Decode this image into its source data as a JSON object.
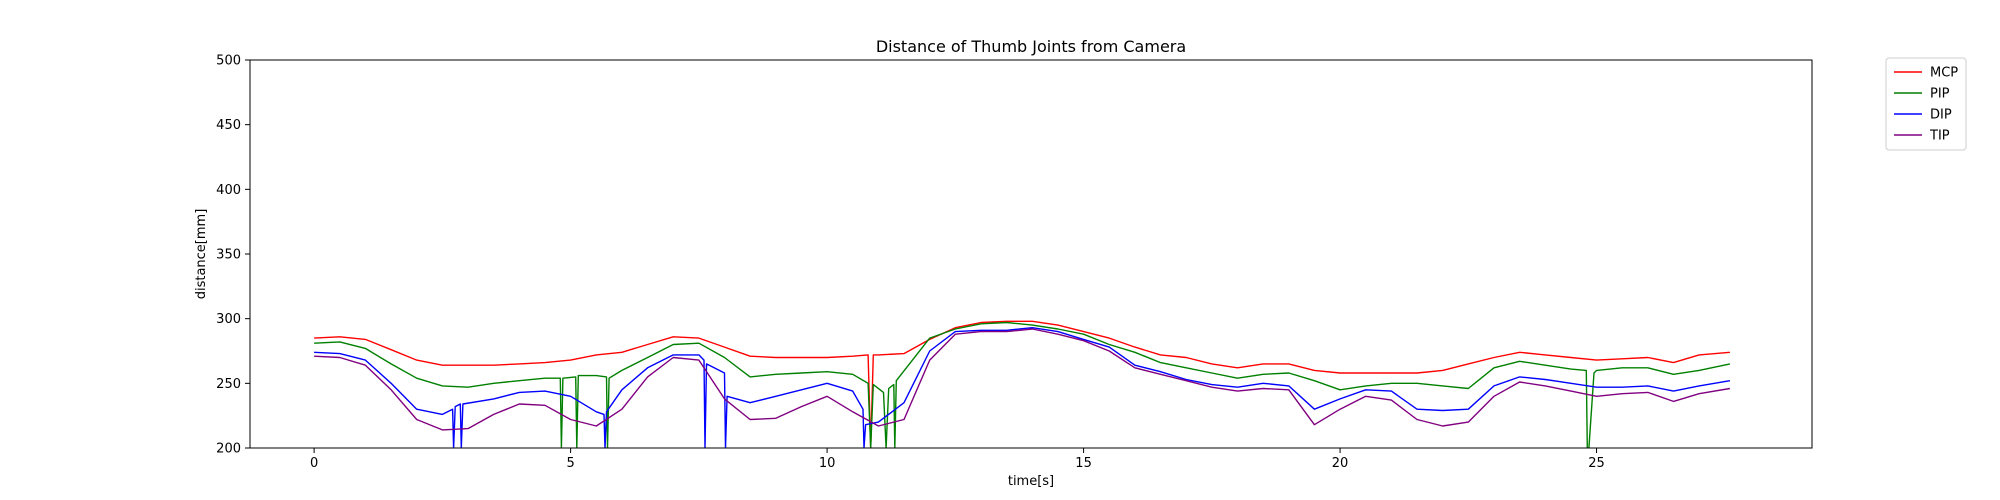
{
  "chart_data": {
    "type": "line",
    "title": "Distance of Thumb Joints from Camera",
    "xlabel": "time[s]",
    "ylabel": "distance[mm]",
    "xlim": [
      -1.25,
      29.2
    ],
    "ylim": [
      200,
      500
    ],
    "xticks": [
      0,
      5,
      10,
      15,
      20,
      25
    ],
    "yticks": [
      200,
      250,
      300,
      350,
      400,
      450,
      500
    ],
    "grid": false,
    "legend_position": "outside-top-right",
    "series": [
      {
        "name": "MCP",
        "color": "#ff0000",
        "x": [
          0,
          0.5,
          1.0,
          1.5,
          2.0,
          2.5,
          3.0,
          3.5,
          4.0,
          4.5,
          5.0,
          5.5,
          6.0,
          6.5,
          7.0,
          7.5,
          8.0,
          8.5,
          9.0,
          9.5,
          10.0,
          10.5,
          10.8,
          10.85,
          10.9,
          10.95,
          11.0,
          11.5,
          12.0,
          12.5,
          13.0,
          13.5,
          14.0,
          14.5,
          15.0,
          15.5,
          16.0,
          16.5,
          17.0,
          17.5,
          18.0,
          18.5,
          19.0,
          19.5,
          20.0,
          20.5,
          21.0,
          21.5,
          22.0,
          22.5,
          23.0,
          23.5,
          24.0,
          24.5,
          25.0,
          25.5,
          26.0,
          26.5,
          27.0,
          27.6
        ],
        "y": [
          285,
          286,
          284,
          276,
          268,
          264,
          264,
          264,
          265,
          266,
          268,
          272,
          274,
          280,
          286,
          285,
          278,
          271,
          270,
          270,
          270,
          271,
          272,
          200,
          272,
          272,
          272,
          273,
          284,
          293,
          297,
          298,
          298,
          295,
          290,
          285,
          278,
          272,
          270,
          265,
          262,
          265,
          265,
          260,
          258,
          258,
          258,
          258,
          260,
          265,
          270,
          274,
          272,
          270,
          268,
          269,
          270,
          266,
          272,
          274
        ]
      },
      {
        "name": "PIP",
        "color": "#008000",
        "x": [
          0,
          0.5,
          1.0,
          1.5,
          2.0,
          2.5,
          3.0,
          3.5,
          4.0,
          4.5,
          4.8,
          4.82,
          4.85,
          5.1,
          5.12,
          5.15,
          5.5,
          5.7,
          5.72,
          5.75,
          6.0,
          6.5,
          7.0,
          7.5,
          8.0,
          8.5,
          9.0,
          9.5,
          10.0,
          10.5,
          10.8,
          10.85,
          10.9,
          11.1,
          11.15,
          11.2,
          11.3,
          11.32,
          11.35,
          12.0,
          12.5,
          13.0,
          13.5,
          14.0,
          14.5,
          15.0,
          15.5,
          16.0,
          16.5,
          17.0,
          17.5,
          18.0,
          18.5,
          19.0,
          19.5,
          20.0,
          20.5,
          21.0,
          21.5,
          22.0,
          22.5,
          23.0,
          23.5,
          24.0,
          24.5,
          24.8,
          24.82,
          24.85,
          24.95,
          25.0,
          25.5,
          26.0,
          26.5,
          27.0,
          27.6
        ],
        "y": [
          281,
          282,
          277,
          265,
          254,
          248,
          247,
          250,
          252,
          254,
          254,
          200,
          254,
          255,
          200,
          256,
          256,
          255,
          200,
          254,
          260,
          270,
          280,
          281,
          270,
          255,
          257,
          258,
          259,
          257,
          250,
          200,
          249,
          243,
          200,
          246,
          249,
          200,
          252,
          285,
          292,
          296,
          297,
          295,
          292,
          288,
          280,
          274,
          266,
          262,
          258,
          254,
          257,
          258,
          252,
          245,
          248,
          250,
          250,
          248,
          246,
          262,
          267,
          264,
          261,
          260,
          200,
          200,
          258,
          260,
          262,
          262,
          257,
          260,
          265
        ]
      },
      {
        "name": "DIP",
        "color": "#0000ff",
        "x": [
          0,
          0.5,
          1.0,
          1.5,
          2.0,
          2.5,
          2.7,
          2.72,
          2.75,
          2.85,
          2.87,
          2.9,
          3.5,
          4.0,
          4.5,
          5.0,
          5.5,
          5.65,
          5.67,
          5.7,
          6.0,
          6.5,
          7.0,
          7.5,
          7.6,
          7.62,
          7.65,
          8.0,
          8.02,
          8.05,
          8.5,
          9.0,
          9.5,
          10.0,
          10.5,
          10.7,
          10.72,
          10.75,
          11.0,
          11.5,
          12.0,
          12.5,
          13.0,
          13.5,
          14.0,
          14.5,
          15.0,
          15.5,
          16.0,
          16.5,
          17.0,
          17.5,
          18.0,
          18.5,
          19.0,
          19.5,
          20.0,
          20.5,
          21.0,
          21.5,
          22.0,
          22.5,
          23.0,
          23.5,
          24.0,
          24.5,
          25.0,
          25.5,
          26.0,
          26.5,
          27.0,
          27.6
        ],
        "y": [
          274,
          273,
          268,
          250,
          230,
          226,
          230,
          200,
          232,
          234,
          200,
          234,
          238,
          243,
          244,
          240,
          228,
          226,
          200,
          228,
          245,
          262,
          272,
          272,
          268,
          200,
          265,
          258,
          200,
          240,
          235,
          240,
          245,
          250,
          244,
          230,
          200,
          218,
          220,
          235,
          275,
          290,
          291,
          291,
          293,
          290,
          284,
          278,
          264,
          259,
          253,
          249,
          247,
          250,
          248,
          230,
          238,
          245,
          244,
          230,
          229,
          230,
          248,
          255,
          253,
          250,
          247,
          247,
          248,
          244,
          248,
          252
        ]
      },
      {
        "name": "TIP",
        "color": "#800080",
        "x": [
          0,
          0.5,
          1.0,
          1.5,
          2.0,
          2.5,
          3.0,
          3.5,
          4.0,
          4.5,
          5.0,
          5.5,
          6.0,
          6.5,
          7.0,
          7.5,
          8.0,
          8.5,
          9.0,
          9.5,
          10.0,
          10.5,
          11.0,
          11.5,
          12.0,
          12.5,
          13.0,
          13.5,
          14.0,
          14.5,
          15.0,
          15.5,
          16.0,
          16.5,
          17.0,
          17.5,
          18.0,
          18.5,
          19.0,
          19.5,
          20.0,
          20.5,
          21.0,
          21.5,
          22.0,
          22.5,
          23.0,
          23.5,
          24.0,
          24.5,
          25.0,
          25.5,
          26.0,
          26.5,
          27.0,
          27.6
        ],
        "y": [
          271,
          270,
          264,
          245,
          222,
          214,
          215,
          226,
          234,
          233,
          222,
          217,
          230,
          255,
          270,
          268,
          238,
          222,
          223,
          232,
          240,
          228,
          217,
          222,
          268,
          288,
          290,
          290,
          292,
          288,
          283,
          275,
          262,
          257,
          252,
          247,
          244,
          246,
          245,
          218,
          230,
          240,
          237,
          222,
          217,
          220,
          240,
          251,
          248,
          244,
          240,
          242,
          243,
          236,
          242,
          246
        ]
      }
    ]
  }
}
